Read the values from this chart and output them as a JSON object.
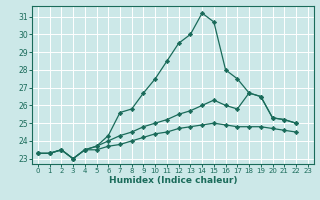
{
  "xlabel": "Humidex (Indice chaleur)",
  "bg_color": "#cce8e8",
  "line_color": "#1a6b5a",
  "grid_color": "#ffffff",
  "xlim": [
    -0.5,
    23.5
  ],
  "ylim": [
    22.7,
    31.6
  ],
  "yticks": [
    23,
    24,
    25,
    26,
    27,
    28,
    29,
    30,
    31
  ],
  "xticks": [
    0,
    1,
    2,
    3,
    4,
    5,
    6,
    7,
    8,
    9,
    10,
    11,
    12,
    13,
    14,
    15,
    16,
    17,
    18,
    19,
    20,
    21,
    22,
    23
  ],
  "series1": [
    23.3,
    23.3,
    23.5,
    23.0,
    23.5,
    23.7,
    24.3,
    25.6,
    25.8,
    26.7,
    27.5,
    28.5,
    29.5,
    30.0,
    31.2,
    30.7,
    28.0,
    27.5,
    26.7,
    26.5,
    25.3,
    25.2,
    25.0,
    null
  ],
  "series2": [
    23.3,
    23.3,
    23.5,
    23.0,
    23.5,
    23.7,
    24.0,
    24.3,
    24.5,
    24.8,
    25.0,
    25.2,
    25.5,
    25.7,
    26.0,
    26.3,
    26.0,
    25.8,
    26.7,
    26.5,
    25.3,
    25.2,
    25.0,
    null
  ],
  "series3": [
    23.3,
    23.3,
    23.5,
    23.0,
    23.5,
    23.5,
    23.7,
    23.8,
    24.0,
    24.2,
    24.4,
    24.5,
    24.7,
    24.8,
    24.9,
    25.0,
    24.9,
    24.8,
    24.8,
    24.8,
    24.7,
    24.6,
    24.5,
    null
  ]
}
